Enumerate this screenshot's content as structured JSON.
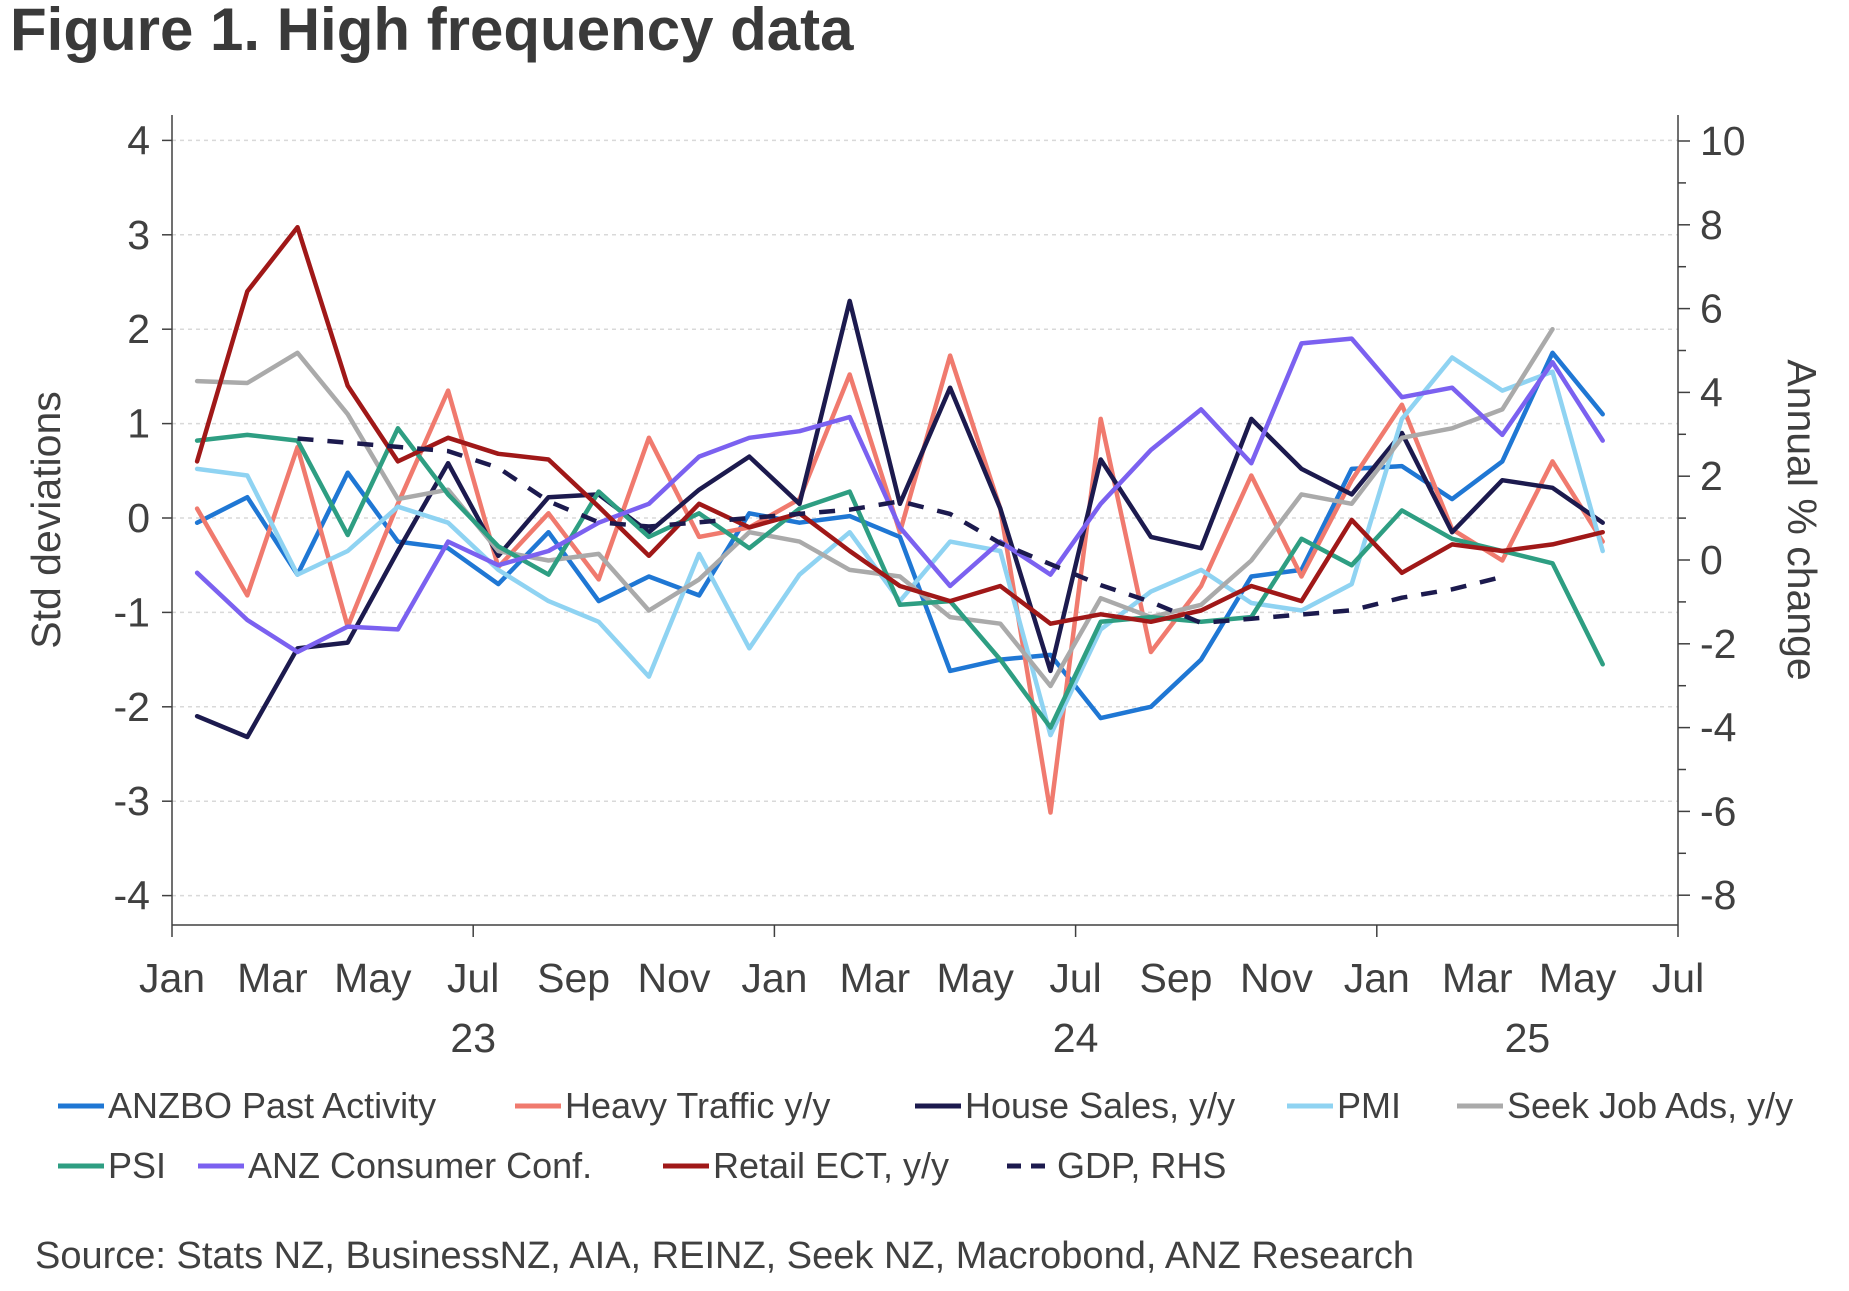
{
  "chart_data": {
    "type": "line",
    "title": "Figure 1.  High frequency data",
    "ylabel": "Std deviations",
    "y2label": "Annual % change",
    "ylim": [
      -4.3,
      4.3
    ],
    "y2lim": [
      -8.6,
      10.6
    ],
    "yticks": [
      "4",
      "3",
      "2",
      "1",
      "0",
      "-1",
      "-2",
      "-3",
      "-4"
    ],
    "y2ticks": [
      "10",
      "8",
      "6",
      "4",
      "2",
      "0",
      "-2",
      "-4",
      "-6",
      "-8"
    ],
    "xticks": [
      "Jan",
      "Mar",
      "May",
      "Jul",
      "Sep",
      "Nov",
      "Jan",
      "Mar",
      "May",
      "Jul",
      "Sep",
      "Nov",
      "Jan",
      "Mar",
      "May",
      "Jul"
    ],
    "years": [
      "23",
      "24",
      "25"
    ],
    "x_start": "Jan 2023",
    "x_end": "Jul 2025",
    "source": "Source: Stats NZ, BusinessNZ, AIA, REINZ, Seek NZ, Macrobond, ANZ Research",
    "series": [
      {
        "name": "ANZBO Past Activity",
        "color": "#1f77d4",
        "dash": false,
        "axis": "left",
        "values": [
          -0.05,
          0.22,
          -0.6,
          0.48,
          -0.25,
          -0.32,
          -0.7,
          -0.15,
          -0.88,
          -0.62,
          -0.82,
          0.05,
          -0.05,
          0.02,
          -0.2,
          -1.62,
          -1.5,
          -1.45,
          -2.12,
          -2.0,
          -1.5,
          -0.62,
          -0.55,
          0.52,
          0.55,
          0.2,
          0.6,
          1.75,
          1.1
        ]
      },
      {
        "name": "Heavy Traffic y/y",
        "color": "#f07a6e",
        "dash": false,
        "axis": "left",
        "values": [
          0.1,
          -0.82,
          0.75,
          -1.15,
          0.15,
          1.35,
          -0.52,
          0.05,
          -0.65,
          0.85,
          -0.2,
          -0.1,
          0.2,
          1.52,
          -0.15,
          1.72,
          0.1,
          -3.12,
          1.05,
          -1.42,
          -0.72,
          0.45,
          -0.62,
          0.4,
          1.2,
          -0.12,
          -0.45,
          0.6,
          -0.25
        ]
      },
      {
        "name": "House Sales, y/y",
        "color": "#1c1a4e",
        "dash": false,
        "axis": "left",
        "values": [
          -2.1,
          -2.32,
          -1.38,
          -1.32,
          -0.35,
          0.58,
          -0.4,
          0.22,
          0.25,
          -0.15,
          0.3,
          0.65,
          0.15,
          2.3,
          0.15,
          1.38,
          0.1,
          -1.62,
          0.62,
          -0.2,
          -0.32,
          1.05,
          0.52,
          0.25,
          0.9,
          -0.15,
          0.4,
          0.32,
          -0.05
        ]
      },
      {
        "name": "PMI",
        "color": "#8fd3f2",
        "dash": false,
        "axis": "left",
        "values": [
          0.52,
          0.45,
          -0.6,
          -0.35,
          0.12,
          -0.05,
          -0.55,
          -0.88,
          -1.1,
          -1.68,
          -0.38,
          -1.38,
          -0.6,
          -0.15,
          -0.88,
          -0.25,
          -0.35,
          -2.3,
          -1.18,
          -0.78,
          -0.55,
          -0.9,
          -0.98,
          -0.7,
          1.05,
          1.7,
          1.35,
          1.55,
          -0.35
        ]
      },
      {
        "name": "Seek Job Ads, y/y",
        "color": "#aaaaaa",
        "dash": false,
        "axis": "left",
        "values": [
          1.45,
          1.43,
          1.75,
          1.1,
          0.2,
          0.3,
          -0.35,
          -0.45,
          -0.38,
          -0.98,
          -0.65,
          -0.15,
          -0.25,
          -0.55,
          -0.62,
          -1.05,
          -1.12,
          -1.78,
          -0.85,
          -1.05,
          -0.92,
          -0.45,
          0.25,
          0.15,
          0.85,
          0.95,
          1.15,
          2.0,
          null
        ]
      },
      {
        "name": "PSI",
        "color": "#2e9e82",
        "dash": false,
        "axis": "left",
        "values": [
          0.82,
          0.88,
          0.82,
          -0.18,
          0.95,
          0.25,
          -0.3,
          -0.6,
          0.28,
          -0.2,
          0.05,
          -0.32,
          0.1,
          0.28,
          -0.92,
          -0.88,
          -1.5,
          -2.22,
          -1.1,
          -1.05,
          -1.1,
          -1.05,
          -0.22,
          -0.5,
          0.08,
          -0.22,
          -0.35,
          -0.48,
          -1.55
        ]
      },
      {
        "name": "ANZ Consumer Conf.",
        "color": "#7b61f0",
        "dash": false,
        "axis": "left",
        "values": [
          -0.58,
          -1.08,
          -1.42,
          -1.15,
          -1.18,
          -0.25,
          -0.5,
          -0.35,
          -0.05,
          0.15,
          0.65,
          0.85,
          0.92,
          1.07,
          -0.1,
          -0.72,
          -0.25,
          -0.6,
          0.15,
          0.72,
          1.15,
          0.58,
          1.85,
          1.9,
          1.28,
          1.38,
          0.88,
          1.65,
          0.82
        ]
      },
      {
        "name": "Retail ECT, y/y",
        "color": "#a01818",
        "dash": false,
        "axis": "left",
        "values": [
          0.6,
          2.4,
          3.08,
          1.4,
          0.6,
          0.85,
          0.68,
          0.62,
          0.12,
          -0.4,
          0.15,
          -0.1,
          0.05,
          -0.35,
          -0.72,
          -0.88,
          -0.72,
          -1.12,
          -1.02,
          -1.1,
          -0.98,
          -0.72,
          -0.88,
          -0.02,
          -0.58,
          -0.28,
          -0.35,
          -0.28,
          -0.15
        ]
      },
      {
        "name": "GDP, RHS",
        "color": "#1c1a4e",
        "dash": true,
        "axis": "right",
        "values": [
          null,
          null,
          2.9,
          2.8,
          2.7,
          2.6,
          2.2,
          1.4,
          0.9,
          0.8,
          0.9,
          1.0,
          1.1,
          1.2,
          1.4,
          1.1,
          0.4,
          -0.1,
          -0.6,
          -1.0,
          -1.5,
          -1.4,
          -1.3,
          -1.2,
          -0.9,
          -0.7,
          -0.4,
          null,
          null
        ]
      }
    ]
  }
}
